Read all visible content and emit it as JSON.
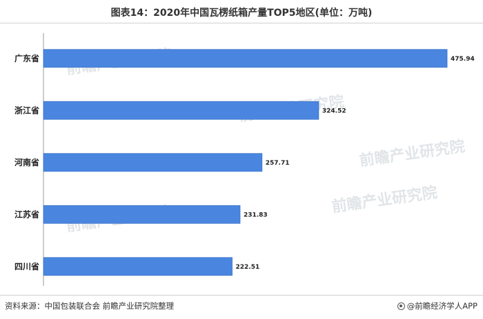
{
  "title": "图表14：2020年中国瓦楞纸箱产量TOP5地区(单位：万吨)",
  "source": "资料来源：中国包装联合会 前瞻产业研究院整理",
  "brand": "@前瞻经济学人APP",
  "watermark": "前瞻产业研究院",
  "colors": {
    "bar": "#4a86e0",
    "bar_stroke": "#3b73c8",
    "axis": "#999999"
  },
  "chart_data": {
    "type": "bar",
    "orientation": "horizontal",
    "title": "图表14：2020年中国瓦楞纸箱产量TOP5地区(单位：万吨)",
    "xlabel": "",
    "ylabel": "",
    "unit": "万吨",
    "categories": [
      "广东省",
      "浙江省",
      "河南省",
      "江苏省",
      "四川省"
    ],
    "values": [
      475.94,
      324.52,
      257.71,
      231.83,
      222.51
    ],
    "value_labels": [
      "475.94",
      "324.52",
      "257.71",
      "231.83",
      "222.51"
    ],
    "xlim": [
      0,
      500
    ],
    "grid": false,
    "legend": "none"
  }
}
